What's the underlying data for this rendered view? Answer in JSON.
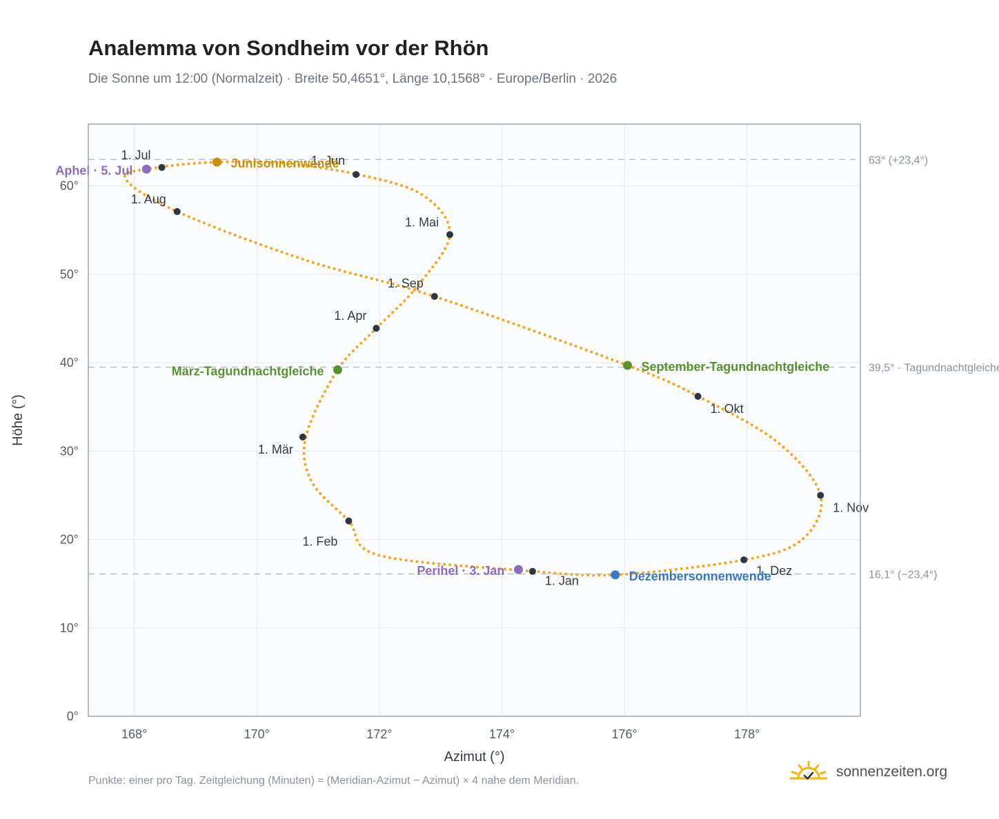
{
  "chart_data": {
    "type": "scatter",
    "title": "Analemma von Sondheim vor der Rhön",
    "subtitle": "Die Sonne um 12:00 (Normalzeit) · Breite 50,4651°, Länge 10,1568° · Europe/Berlin · 2026",
    "xlabel": "Azimut (°)",
    "ylabel": "Höhe (°)",
    "xlim": [
      167.25,
      179.85
    ],
    "ylim": [
      0,
      67
    ],
    "xticks": [
      "168°",
      "170°",
      "172°",
      "174°",
      "176°",
      "178°"
    ],
    "yticks": [
      "0°",
      "10°",
      "20°",
      "30°",
      "40°",
      "50°",
      "60°"
    ],
    "grid": true,
    "series_color": "#f5a623",
    "reference_lines": [
      {
        "y": 63.0,
        "label": "63° (+23,4°)"
      },
      {
        "y": 39.5,
        "label": "39,5° · Tagundnachtgleiche"
      },
      {
        "y": 16.1,
        "label": "16,1° (−23,4°)"
      }
    ],
    "path_anchors": [
      {
        "x": 174.5,
        "y": 16.4
      },
      {
        "x": 172.0,
        "y": 18.2
      },
      {
        "x": 171.5,
        "y": 22.1
      },
      {
        "x": 170.9,
        "y": 26.5
      },
      {
        "x": 170.8,
        "y": 31.6
      },
      {
        "x": 171.32,
        "y": 39.2
      },
      {
        "x": 171.95,
        "y": 43.9
      },
      {
        "x": 172.6,
        "y": 48.5
      },
      {
        "x": 173.15,
        "y": 54.5
      },
      {
        "x": 172.7,
        "y": 59.0
      },
      {
        "x": 171.65,
        "y": 61.3
      },
      {
        "x": 170.4,
        "y": 62.6
      },
      {
        "x": 169.35,
        "y": 62.7
      },
      {
        "x": 168.4,
        "y": 62.1
      },
      {
        "x": 167.85,
        "y": 60.9
      },
      {
        "x": 168.7,
        "y": 57.1
      },
      {
        "x": 170.8,
        "y": 51.6
      },
      {
        "x": 172.9,
        "y": 47.5
      },
      {
        "x": 176.05,
        "y": 39.7
      },
      {
        "x": 177.2,
        "y": 36.2
      },
      {
        "x": 178.5,
        "y": 31.0
      },
      {
        "x": 179.2,
        "y": 25.0
      },
      {
        "x": 178.9,
        "y": 20.0
      },
      {
        "x": 177.95,
        "y": 17.7
      },
      {
        "x": 175.85,
        "y": 16.0
      },
      {
        "x": 174.5,
        "y": 16.4
      }
    ],
    "month_points": [
      {
        "label": "1. Jan",
        "x": 174.5,
        "y": 16.4
      },
      {
        "label": "1. Feb",
        "x": 171.5,
        "y": 22.1
      },
      {
        "label": "1. Mär",
        "x": 170.75,
        "y": 31.6
      },
      {
        "label": "1. Apr",
        "x": 171.95,
        "y": 43.9
      },
      {
        "label": "1. Mai",
        "x": 173.15,
        "y": 54.5
      },
      {
        "label": "1. Jun",
        "x": 171.62,
        "y": 61.3
      },
      {
        "label": "1. Jul",
        "x": 168.45,
        "y": 62.1
      },
      {
        "label": "1. Aug",
        "x": 168.7,
        "y": 57.1
      },
      {
        "label": "1. Sep",
        "x": 172.9,
        "y": 47.5
      },
      {
        "label": "1. Okt",
        "x": 177.2,
        "y": 36.2
      },
      {
        "label": "1. Nov",
        "x": 179.2,
        "y": 25.0
      },
      {
        "label": "1. Dez",
        "x": 177.95,
        "y": 17.7
      }
    ],
    "events": [
      {
        "label": "Junisonnenwende",
        "x": 169.35,
        "y": 62.7,
        "color": "#c8900a"
      },
      {
        "label": "Aphel · 5. Jul",
        "x": 168.2,
        "y": 61.9,
        "color": "#8e6bbf"
      },
      {
        "label": "März-Tagundnachtgleiche",
        "x": 171.32,
        "y": 39.2,
        "color": "#5b8f2f"
      },
      {
        "label": "September-Tagundnachtgleiche",
        "x": 176.05,
        "y": 39.7,
        "color": "#5b8f2f"
      },
      {
        "label": "Perihel · 3. Jan",
        "x": 174.27,
        "y": 16.6,
        "color": "#8e6bbf"
      },
      {
        "label": "Dezembersonnenwende",
        "x": 175.85,
        "y": 16.0,
        "color": "#3a78c2"
      }
    ]
  },
  "footnote": "Punkte: einer pro Tag. Zeitgleichung (Minuten) ≈ (Meridian-Azimut − Azimut) × 4 nahe dem Meridian.",
  "brand": {
    "name": "sonnenzeiten.org",
    "icon": "sun-check-icon"
  }
}
